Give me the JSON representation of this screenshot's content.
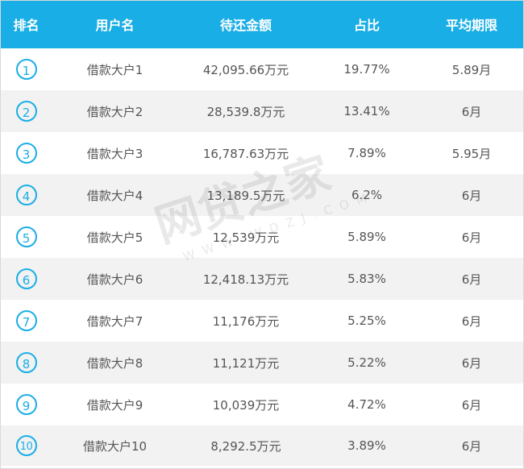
{
  "colors": {
    "accent": "#1aaee6"
  },
  "header": {
    "rank": "排名",
    "user": "用户名",
    "amount": "待还金额",
    "ratio": "占比",
    "term": "平均期限"
  },
  "rows": [
    {
      "rank": "1",
      "user": "借款大户1",
      "amount": "42,095.66万元",
      "ratio": "19.77%",
      "term": "5.89月"
    },
    {
      "rank": "2",
      "user": "借款大户2",
      "amount": "28,539.8万元",
      "ratio": "13.41%",
      "term": "6月"
    },
    {
      "rank": "3",
      "user": "借款大户3",
      "amount": "16,787.63万元",
      "ratio": "7.89%",
      "term": "5.95月"
    },
    {
      "rank": "4",
      "user": "借款大户4",
      "amount": "13,189.5万元",
      "ratio": "6.2%",
      "term": "6月"
    },
    {
      "rank": "5",
      "user": "借款大户5",
      "amount": "12,539万元",
      "ratio": "5.89%",
      "term": "6月"
    },
    {
      "rank": "6",
      "user": "借款大户6",
      "amount": "12,418.13万元",
      "ratio": "5.83%",
      "term": "6月"
    },
    {
      "rank": "7",
      "user": "借款大户7",
      "amount": "11,176万元",
      "ratio": "5.25%",
      "term": "6月"
    },
    {
      "rank": "8",
      "user": "借款大户8",
      "amount": "11,121万元",
      "ratio": "5.22%",
      "term": "6月"
    },
    {
      "rank": "9",
      "user": "借款大户9",
      "amount": "10,039万元",
      "ratio": "4.72%",
      "term": "6月"
    },
    {
      "rank": "10",
      "user": "借款大户10",
      "amount": "8,292.5万元",
      "ratio": "3.89%",
      "term": "6月"
    }
  ],
  "watermark": {
    "main": "网贷之家",
    "sub": "WWW.WDZJ.COM"
  }
}
